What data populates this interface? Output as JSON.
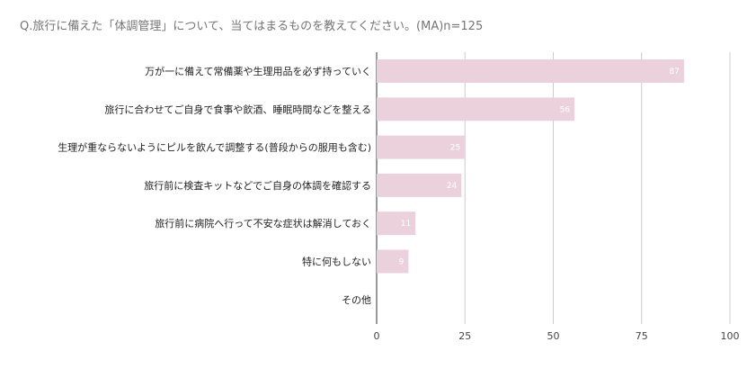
{
  "chart_data": {
    "type": "bar",
    "orientation": "horizontal",
    "title": "Q.旅行に備えた「体調管理」について、当てはまるものを教えてください。(MA)n=125",
    "categories": [
      "万が一に備えて常備薬や生理用品を必ず持っていく",
      "旅行に合わせてご自身で食事や飲酒、睡眠時間などを整える",
      "生理が重ならないようにピルを飲んで調整する(普段からの服用も含む)",
      "旅行前に検査キットなどでご自身の体調を確認する",
      "旅行前に病院へ行って不安な症状は解消しておく",
      "特に何もしない",
      "その他"
    ],
    "values": [
      87,
      56,
      25,
      24,
      11,
      9,
      0
    ],
    "data_labels": [
      "87",
      "56",
      "25",
      "24",
      "11",
      "9",
      ""
    ],
    "xlim": [
      0,
      100
    ],
    "xticks": [
      0,
      25,
      50,
      75,
      100
    ],
    "xtick_labels": [
      "0",
      "25",
      "50",
      "75",
      "100"
    ],
    "grid": true,
    "legend": "none",
    "colors": {
      "bar": "#ead1dc",
      "grid": "#cccccc",
      "axis": "#333333"
    }
  }
}
